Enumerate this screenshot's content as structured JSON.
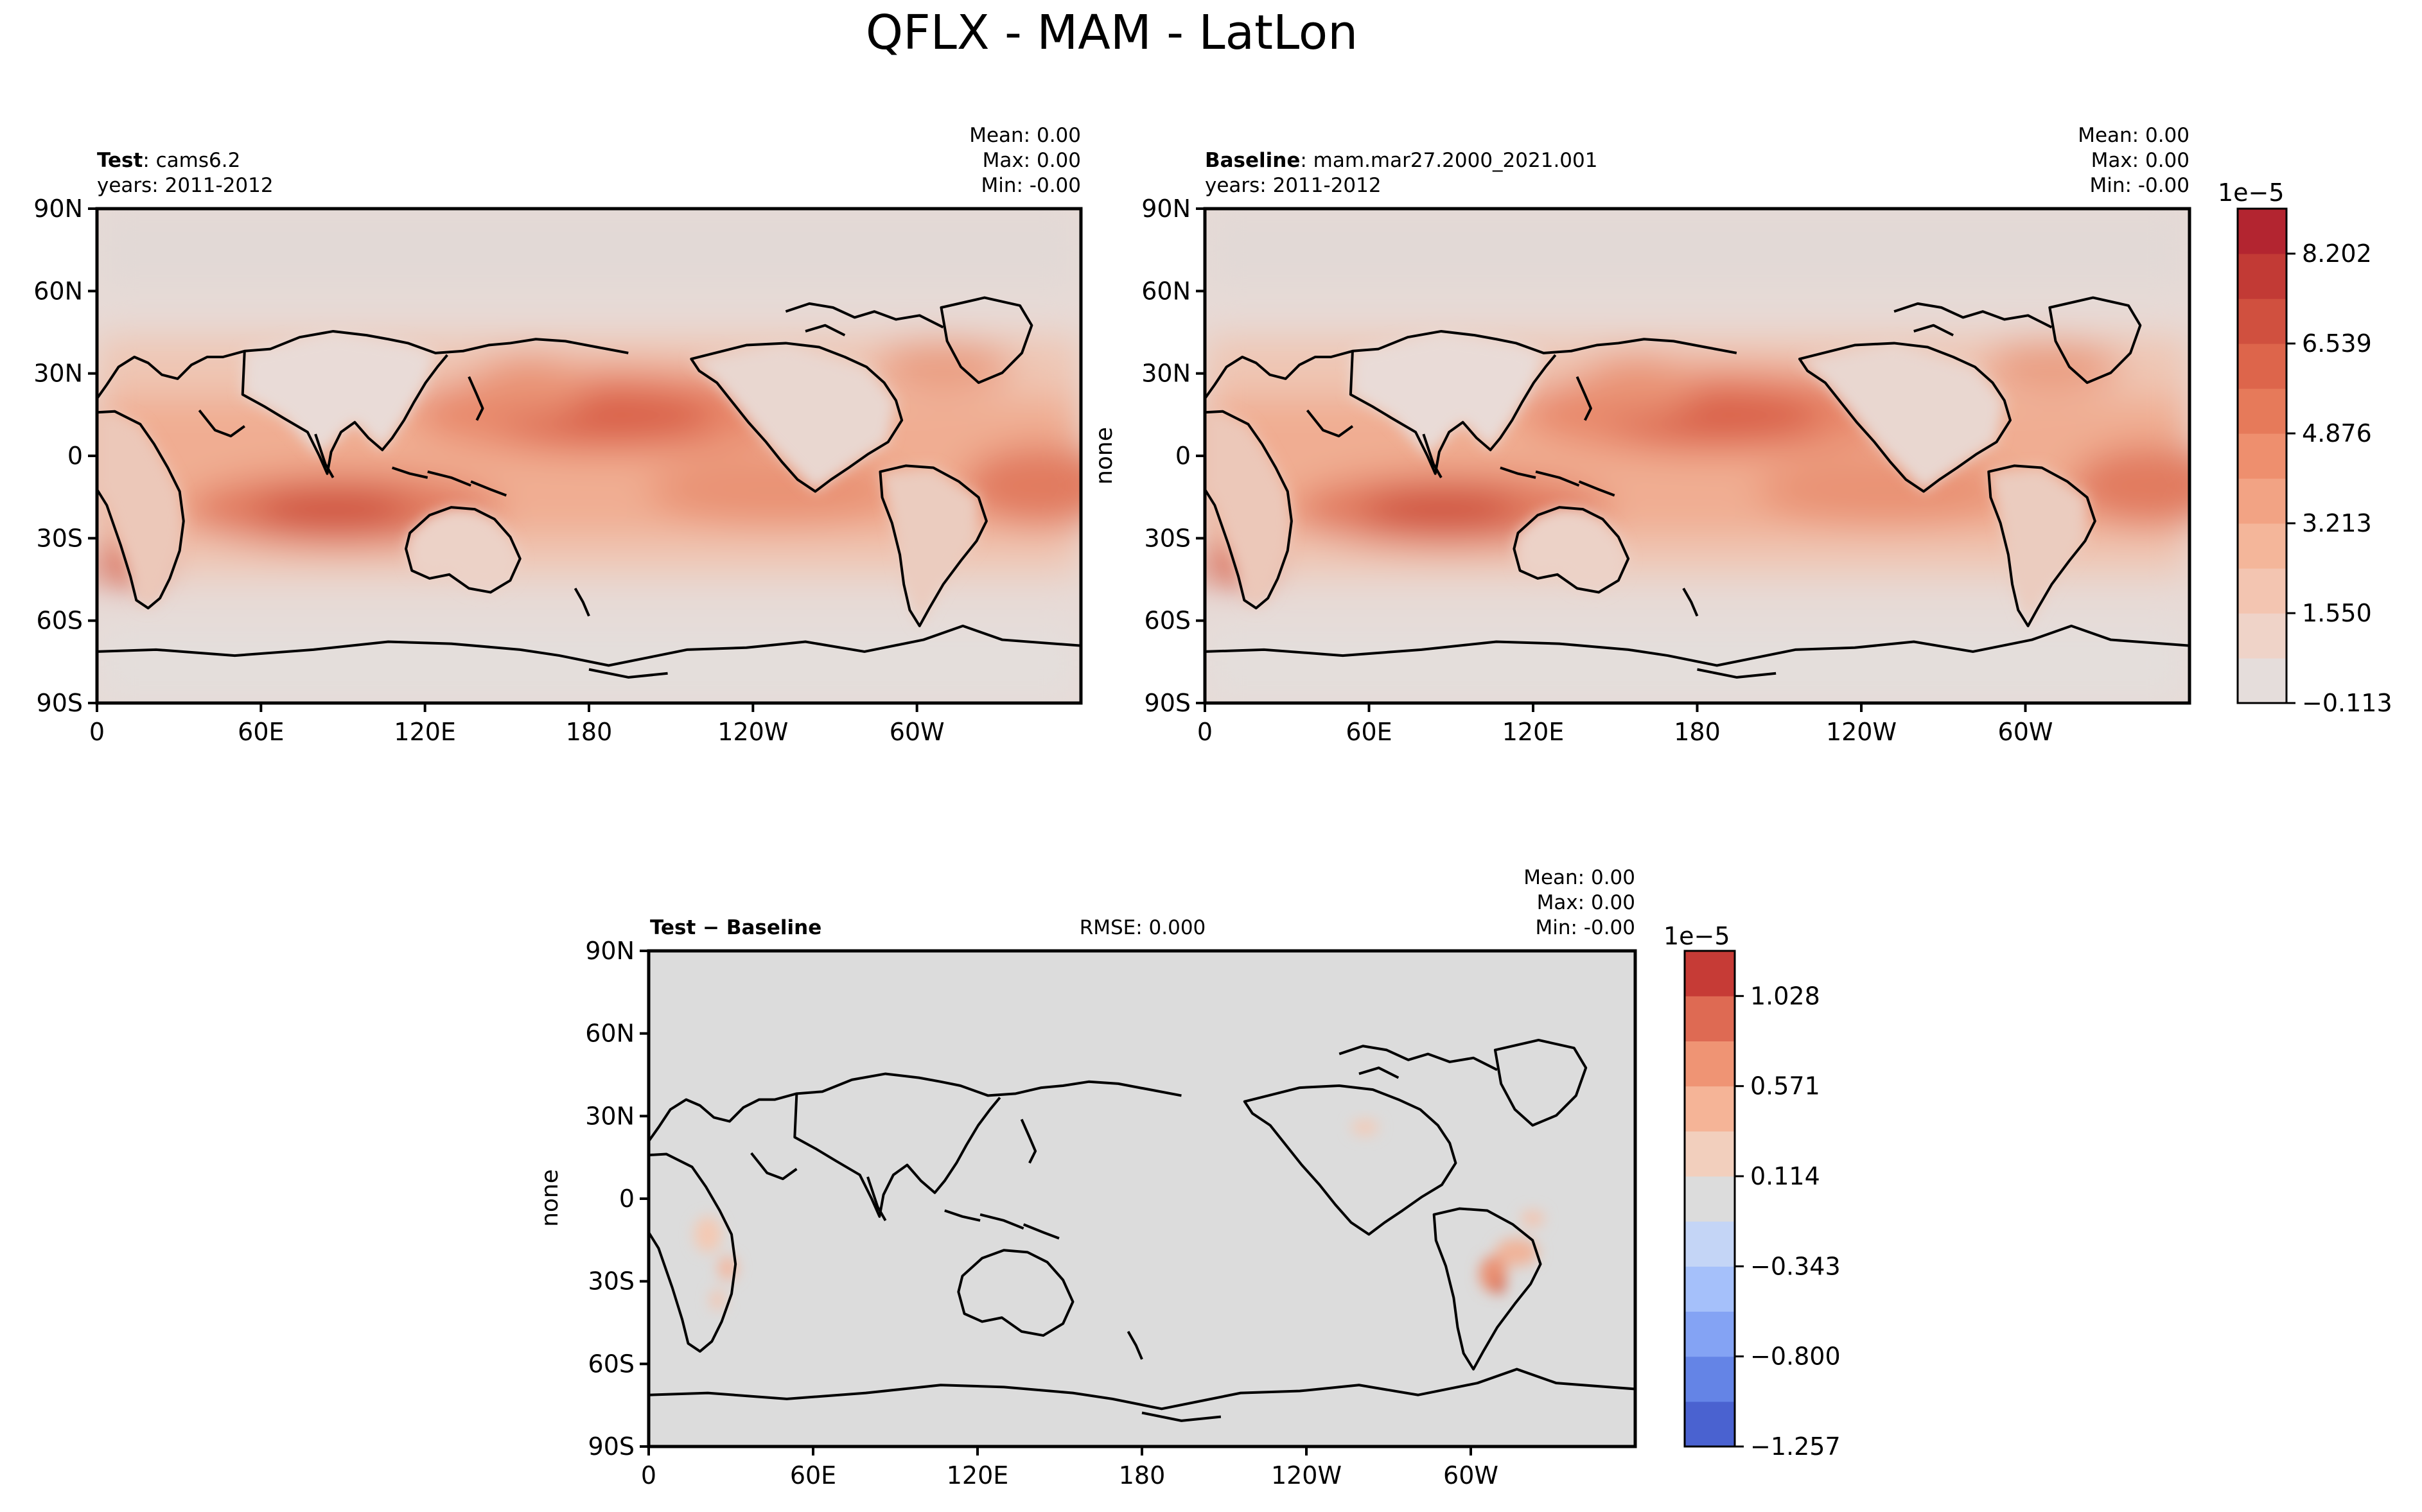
{
  "figure": {
    "title": "QFLX - MAM - LatLon"
  },
  "chart_data": [
    {
      "type": "heatmap",
      "panel": "test",
      "label_bold": "Test",
      "label_rest": ": cams6.2",
      "years": "years: 2011-2012",
      "stats": {
        "mean": "Mean:  0.00",
        "max": "Max:  0.00",
        "min": "Min: -0.00"
      },
      "ylabel": "",
      "lat_ticks": [
        "90N",
        "60N",
        "30N",
        "0",
        "30S",
        "60S",
        "90S"
      ],
      "lon_ticks": [
        "0",
        "60E",
        "120E",
        "180",
        "120W",
        "60W"
      ],
      "xlim": [
        0,
        360
      ],
      "ylim": [
        -90,
        90
      ],
      "colormap": "Reds"
    },
    {
      "type": "heatmap",
      "panel": "baseline",
      "label_bold": "Baseline",
      "label_rest": ": mam.mar27.2000_2021.001",
      "years": "years: 2011-2012",
      "stats": {
        "mean": "Mean:  0.00",
        "max": "Max:  0.00",
        "min": "Min: -0.00"
      },
      "ylabel": "none",
      "lat_ticks": [
        "90N",
        "60N",
        "30N",
        "0",
        "30S",
        "60S",
        "90S"
      ],
      "lon_ticks": [
        "0",
        "60E",
        "120E",
        "180",
        "120W",
        "60W"
      ],
      "xlim": [
        0,
        360
      ],
      "ylim": [
        -90,
        90
      ],
      "colormap": "Reds"
    },
    {
      "type": "heatmap",
      "panel": "difference",
      "label_bold": "Test − Baseline",
      "rmse": "RMSE: 0.000",
      "stats": {
        "mean": "Mean:  0.00",
        "max": "Max:  0.00",
        "min": "Min: -0.00"
      },
      "ylabel": "none",
      "lat_ticks": [
        "90N",
        "60N",
        "30N",
        "0",
        "30S",
        "60S",
        "90S"
      ],
      "lon_ticks": [
        "0",
        "60E",
        "120E",
        "180",
        "120W",
        "60W"
      ],
      "xlim": [
        0,
        360
      ],
      "ylim": [
        -90,
        90
      ],
      "colormap": "RdBu_r"
    }
  ],
  "colorbars": {
    "main": {
      "exponent": "1e−5",
      "tick_labels": [
        "8.202",
        "6.539",
        "4.876",
        "3.213",
        "1.550",
        "−0.113"
      ],
      "tick_values": [
        8.202,
        6.539,
        4.876,
        3.213,
        1.55,
        -0.113
      ],
      "range": [
        -0.113,
        9.034
      ],
      "colors": [
        "#e5dddb",
        "#efd3c8",
        "#f3c5b1",
        "#f4b69a",
        "#f2a384",
        "#ee8f6e",
        "#e67a5a",
        "#dd654b",
        "#d0503f",
        "#c23a35",
        "#b32530"
      ]
    },
    "diff": {
      "exponent": "1e−5",
      "tick_labels": [
        "1.028",
        "0.571",
        "0.114",
        "−0.343",
        "−0.800",
        "−1.257"
      ],
      "tick_values": [
        1.028,
        0.571,
        0.114,
        -0.343,
        -0.8,
        -1.257
      ],
      "range": [
        -1.257,
        1.257
      ],
      "colors": [
        "#4a62d0",
        "#6484e6",
        "#84a3f4",
        "#a5c0fa",
        "#c4d5f6",
        "#dcdcdc",
        "#f2cfbd",
        "#f5b497",
        "#ef9474",
        "#de6a53",
        "#c63b36"
      ]
    }
  }
}
